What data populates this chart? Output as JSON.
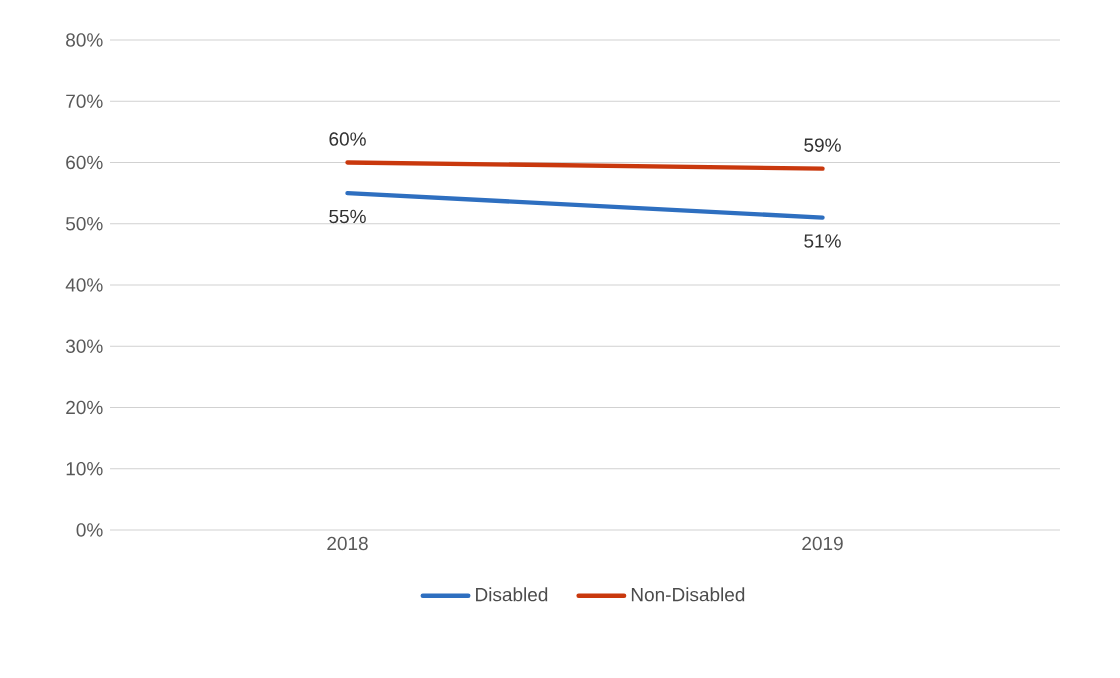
{
  "chart_data": {
    "type": "line",
    "categories": [
      "2018",
      "2019"
    ],
    "series": [
      {
        "name": "Disabled",
        "color": "#2e6fc0",
        "values": [
          55,
          51
        ],
        "value_labels": [
          "55%",
          "51%"
        ]
      },
      {
        "name": "Non-Disabled",
        "color": "#c9380d",
        "values": [
          60,
          59
        ],
        "value_labels": [
          "60%",
          "59%"
        ]
      }
    ],
    "ylim": [
      0,
      80
    ],
    "yticks": [
      {
        "value": 0,
        "label": "0%"
      },
      {
        "value": 10,
        "label": "10%"
      },
      {
        "value": 20,
        "label": "20%"
      },
      {
        "value": 30,
        "label": "30%"
      },
      {
        "value": 40,
        "label": "40%"
      },
      {
        "value": 50,
        "label": "50%"
      },
      {
        "value": 60,
        "label": "60%"
      },
      {
        "value": 70,
        "label": "70%"
      },
      {
        "value": 80,
        "label": "80%"
      }
    ],
    "grid": "y",
    "legend": "bottom",
    "marker": "none",
    "line_style": "solid"
  }
}
